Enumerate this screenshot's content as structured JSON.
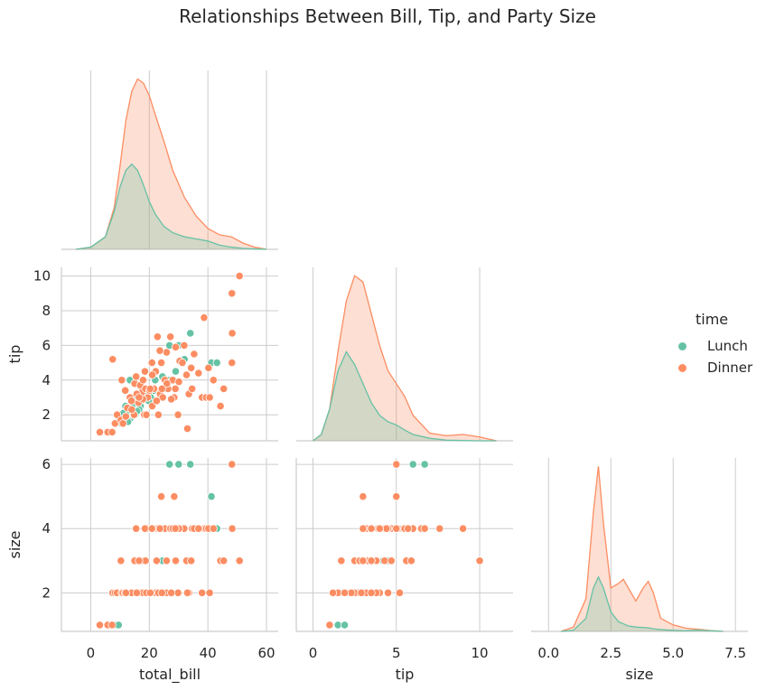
{
  "title": "Relationships Between Bill, Tip, and Party Size",
  "legend": {
    "title": "time",
    "items": [
      {
        "label": "Lunch",
        "color": "#66c2a5"
      },
      {
        "label": "Dinner",
        "color": "#fc8d62"
      }
    ],
    "placement": "right"
  },
  "chart_data": {
    "type": "pairplot",
    "corner": true,
    "variables": [
      "total_bill",
      "tip",
      "size"
    ],
    "hue": "time",
    "grid": true,
    "axes": {
      "total_bill": {
        "label": "total_bill",
        "range": [
          -10,
          64
        ],
        "ticks": [
          0,
          20,
          40,
          60
        ]
      },
      "tip": {
        "label": "tip",
        "range": [
          0.5,
          10.5
        ],
        "ticks": [
          2,
          4,
          6,
          8,
          10
        ],
        "xticks": [
          0,
          5,
          10
        ],
        "xrange": [
          -1,
          12
        ]
      },
      "size": {
        "label": "size",
        "range": [
          0.8,
          6.2
        ],
        "ticks": [
          2,
          4,
          6
        ],
        "xticks": [
          0.0,
          2.5,
          5.0,
          7.5
        ],
        "xticklabels": [
          "0.0",
          "2.5",
          "5.0",
          "7.5"
        ],
        "xrange": [
          -0.7,
          8.0
        ]
      }
    },
    "kde": {
      "total_bill": {
        "x": [
          -5,
          0,
          5,
          8,
          10,
          12,
          14,
          16,
          18,
          20,
          22,
          25,
          28,
          32,
          36,
          40,
          44,
          48,
          52,
          56,
          60
        ],
        "Lunch": [
          0,
          0.001,
          0.006,
          0.018,
          0.03,
          0.038,
          0.041,
          0.038,
          0.031,
          0.023,
          0.017,
          0.011,
          0.008,
          0.006,
          0.005,
          0.004,
          0.002,
          0.001,
          0.0005,
          0.0002,
          0
        ],
        "Dinner": [
          0,
          0.001,
          0.006,
          0.02,
          0.04,
          0.062,
          0.076,
          0.082,
          0.08,
          0.074,
          0.065,
          0.052,
          0.038,
          0.025,
          0.016,
          0.01,
          0.007,
          0.006,
          0.003,
          0.001,
          0
        ]
      },
      "tip": {
        "x": [
          0,
          0.5,
          1.0,
          1.5,
          2.0,
          2.5,
          3.0,
          3.5,
          4.0,
          4.5,
          5.0,
          5.5,
          6.0,
          7.0,
          8.0,
          9.0,
          10.0,
          11.0
        ],
        "Lunch": [
          0,
          0.01,
          0.05,
          0.11,
          0.14,
          0.12,
          0.09,
          0.06,
          0.04,
          0.03,
          0.025,
          0.017,
          0.01,
          0.004,
          0.001,
          0.0005,
          0,
          0
        ],
        "Dinner": [
          0,
          0.01,
          0.05,
          0.14,
          0.22,
          0.26,
          0.25,
          0.2,
          0.15,
          0.11,
          0.09,
          0.07,
          0.04,
          0.012,
          0.008,
          0.01,
          0.006,
          0
        ]
      },
      "size": {
        "x": [
          0.5,
          1.0,
          1.5,
          1.8,
          2.0,
          2.2,
          2.5,
          2.8,
          3.0,
          3.2,
          3.5,
          3.8,
          4.0,
          4.2,
          4.5,
          5.0,
          5.5,
          6.0,
          6.5,
          7.0
        ],
        "Lunch": [
          0,
          0.005,
          0.06,
          0.2,
          0.25,
          0.2,
          0.09,
          0.045,
          0.035,
          0.025,
          0.02,
          0.018,
          0.016,
          0.012,
          0.008,
          0.005,
          0.003,
          0.006,
          0.003,
          0
        ],
        "Dinner": [
          0,
          0.02,
          0.15,
          0.55,
          0.76,
          0.5,
          0.2,
          0.22,
          0.24,
          0.2,
          0.14,
          0.2,
          0.23,
          0.18,
          0.06,
          0.03,
          0.015,
          0.01,
          0.004,
          0
        ]
      }
    },
    "points": {
      "Lunch": [
        [
          8.5,
          1.5,
          1
        ],
        [
          9.5,
          1.9,
          1
        ],
        [
          10.1,
          2.0,
          2
        ],
        [
          10.5,
          1.5,
          2
        ],
        [
          11.2,
          2.1,
          2
        ],
        [
          12.3,
          2.5,
          2
        ],
        [
          13.0,
          2.0,
          2
        ],
        [
          13.5,
          1.8,
          2
        ],
        [
          14.1,
          2.5,
          2
        ],
        [
          15.2,
          2.0,
          2
        ],
        [
          16.0,
          3.0,
          2
        ],
        [
          17.0,
          2.5,
          2
        ],
        [
          18.2,
          3.5,
          3
        ],
        [
          19.0,
          3.2,
          2
        ],
        [
          20.5,
          3.0,
          2
        ],
        [
          22.0,
          4.0,
          2
        ],
        [
          23.7,
          3.3,
          4
        ],
        [
          25.0,
          3.5,
          2
        ],
        [
          27.0,
          4.0,
          2
        ],
        [
          29.0,
          4.5,
          3
        ],
        [
          32.0,
          5.2,
          4
        ],
        [
          34.0,
          6.7,
          6
        ],
        [
          41.2,
          5.0,
          5
        ],
        [
          43.1,
          5.0,
          4
        ],
        [
          12.7,
          1.6,
          2
        ],
        [
          14.5,
          2.0,
          2
        ],
        [
          11.9,
          2.5,
          2
        ],
        [
          16.5,
          2.3,
          2
        ],
        [
          19.8,
          2.8,
          2
        ],
        [
          26.9,
          6.0,
          6
        ],
        [
          30.0,
          6.0,
          6
        ],
        [
          21.5,
          3.4,
          2
        ],
        [
          15.8,
          2.2,
          2
        ],
        [
          13.4,
          4.0,
          2
        ],
        [
          24.5,
          4.2,
          3
        ]
      ],
      "Dinner": [
        [
          3.1,
          1.0,
          1
        ],
        [
          5.8,
          1.0,
          1
        ],
        [
          7.3,
          1.0,
          1
        ],
        [
          7.5,
          5.2,
          2
        ],
        [
          8.3,
          1.5,
          2
        ],
        [
          9.0,
          2.0,
          2
        ],
        [
          10.3,
          1.7,
          3
        ],
        [
          10.6,
          4.0,
          2
        ],
        [
          11.0,
          1.5,
          2
        ],
        [
          11.8,
          3.4,
          2
        ],
        [
          12.5,
          2.4,
          2
        ],
        [
          13.4,
          3.0,
          2
        ],
        [
          13.9,
          2.8,
          2
        ],
        [
          14.8,
          2.0,
          2
        ],
        [
          15.0,
          3.8,
          3
        ],
        [
          15.5,
          4.2,
          4
        ],
        [
          16.3,
          2.7,
          2
        ],
        [
          16.9,
          3.7,
          2
        ],
        [
          17.5,
          3.3,
          3
        ],
        [
          17.9,
          4.0,
          2
        ],
        [
          18.3,
          2.0,
          2
        ],
        [
          18.7,
          3.5,
          3
        ],
        [
          19.5,
          3.0,
          4
        ],
        [
          20.1,
          3.4,
          2
        ],
        [
          20.7,
          5.0,
          4
        ],
        [
          21.0,
          2.5,
          2
        ],
        [
          21.6,
          3.5,
          2
        ],
        [
          22.2,
          4.5,
          2
        ],
        [
          22.8,
          6.5,
          4
        ],
        [
          23.1,
          2.0,
          2
        ],
        [
          23.7,
          3.2,
          4
        ],
        [
          24.1,
          5.0,
          5
        ],
        [
          24.6,
          3.0,
          2
        ],
        [
          25.3,
          4.0,
          4
        ],
        [
          25.9,
          5.6,
          3
        ],
        [
          26.4,
          3.5,
          2
        ],
        [
          27.2,
          6.5,
          4
        ],
        [
          28.0,
          4.0,
          4
        ],
        [
          28.5,
          3.0,
          5
        ],
        [
          29.0,
          5.9,
          3
        ],
        [
          29.8,
          2.0,
          2
        ],
        [
          30.4,
          5.1,
          4
        ],
        [
          31.3,
          5.0,
          4
        ],
        [
          31.9,
          6.0,
          4
        ],
        [
          32.7,
          4.3,
          3
        ],
        [
          33.5,
          3.2,
          2
        ],
        [
          34.3,
          4.7,
          3
        ],
        [
          34.6,
          3.5,
          4
        ],
        [
          35.3,
          5.5,
          4
        ],
        [
          38.0,
          3.0,
          2
        ],
        [
          38.7,
          7.6,
          4
        ],
        [
          39.4,
          3.0,
          4
        ],
        [
          40.2,
          4.7,
          4
        ],
        [
          40.6,
          3.0,
          2
        ],
        [
          44.3,
          2.5,
          3
        ],
        [
          45.4,
          3.5,
          3
        ],
        [
          48.2,
          9.0,
          4
        ],
        [
          48.3,
          6.7,
          4
        ],
        [
          48.2,
          5.0,
          6
        ],
        [
          50.8,
          10.0,
          3
        ],
        [
          17.8,
          2.9,
          2
        ],
        [
          19.0,
          2.0,
          2
        ],
        [
          20.3,
          3.5,
          2
        ],
        [
          22.5,
          2.8,
          3
        ],
        [
          26.0,
          3.8,
          2
        ],
        [
          14.0,
          2.3,
          2
        ],
        [
          12.0,
          1.9,
          2
        ],
        [
          15.7,
          3.2,
          2
        ],
        [
          21.0,
          4.3,
          4
        ],
        [
          16.5,
          3.0,
          3
        ],
        [
          18.5,
          4.5,
          4
        ],
        [
          27.5,
          2.9,
          2
        ],
        [
          30.1,
          3.9,
          4
        ],
        [
          24.3,
          3.5,
          2
        ],
        [
          36.8,
          4.4,
          4
        ],
        [
          41.9,
          4.0,
          4
        ],
        [
          33.0,
          1.2,
          2
        ],
        [
          28.9,
          3.5,
          4
        ],
        [
          20.9,
          5.0,
          4
        ],
        [
          23.6,
          5.7,
          4
        ]
      ]
    }
  }
}
